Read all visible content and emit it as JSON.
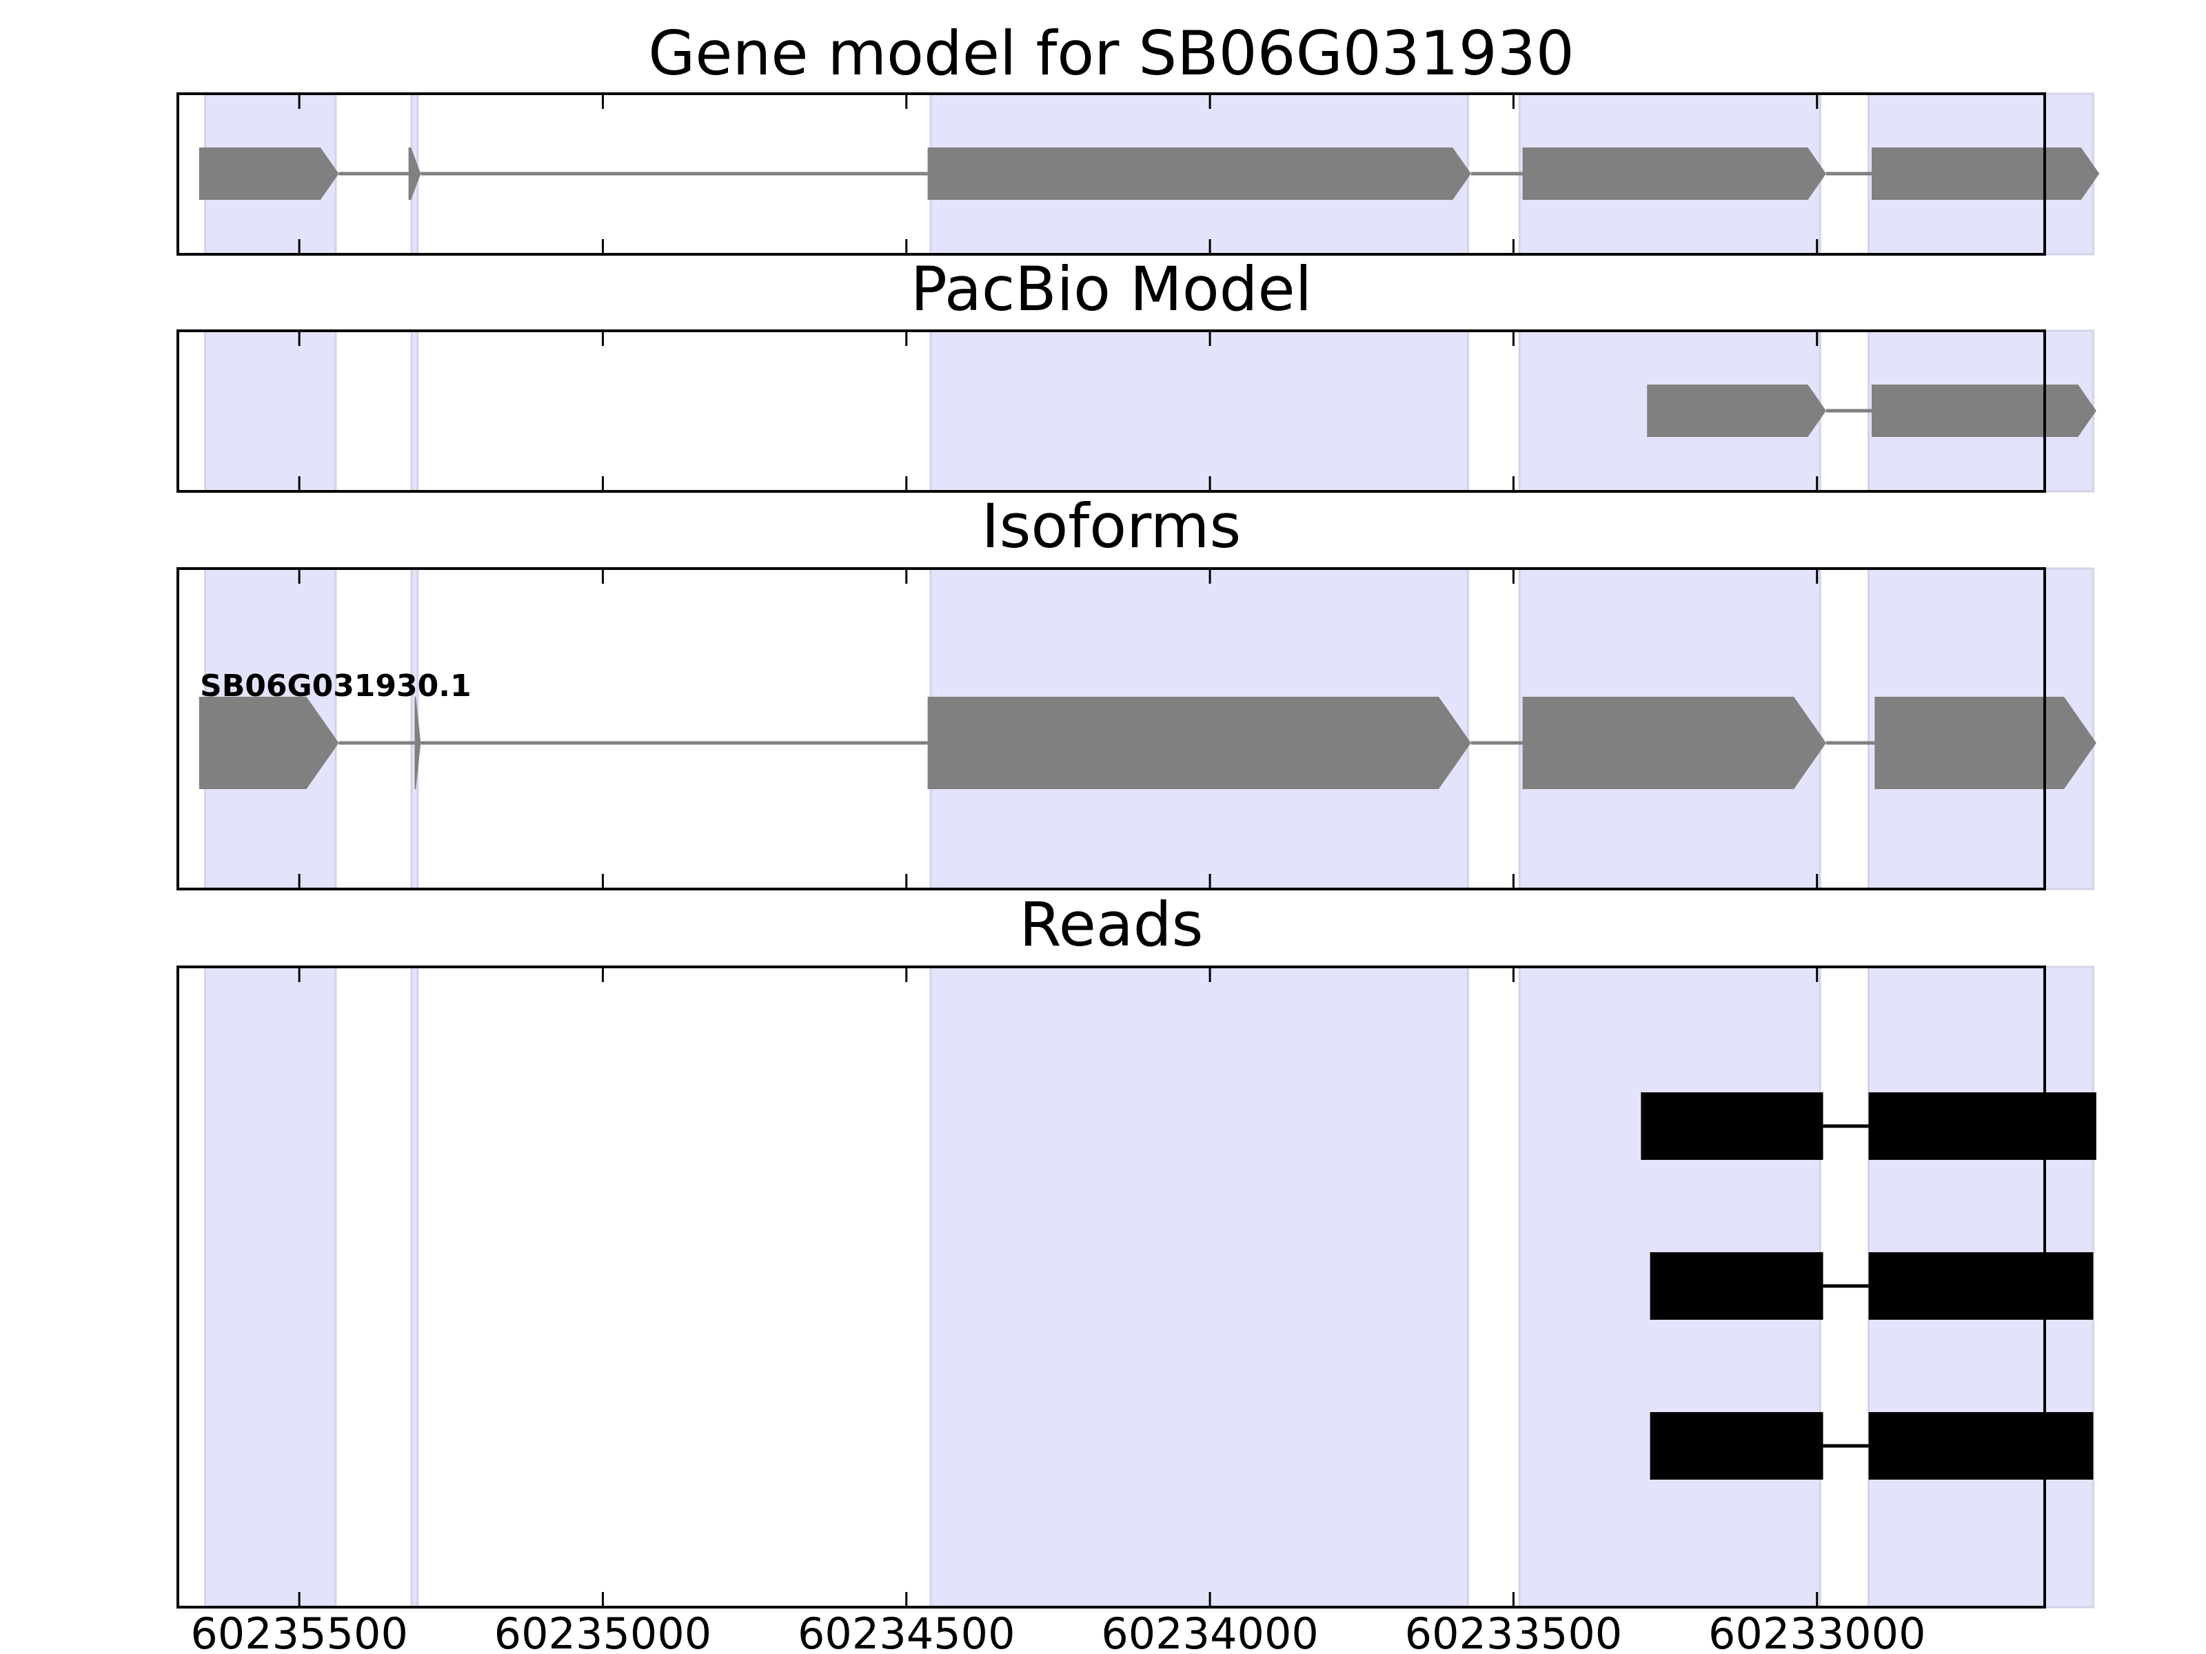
{
  "chart_data": {
    "type": "gene-track",
    "x_axis": {
      "range": [
        60235700,
        60232625
      ],
      "reversed": true,
      "ticks": [
        60235500,
        60235000,
        60234500,
        60234000,
        60233500,
        60233000
      ],
      "tick_labels": [
        "60235500",
        "60235000",
        "60234500",
        "60234000",
        "60233500",
        "60233000"
      ]
    },
    "exon_highlights": [
      [
        60235655,
        60235440
      ],
      [
        60235315,
        60235305
      ],
      [
        60234460,
        60233575
      ],
      [
        60233490,
        60232995
      ],
      [
        60232915,
        60232545
      ]
    ],
    "panels": [
      {
        "key": "gene",
        "title": "Gene model for SB06G031930",
        "tracks": [
          {
            "label": "",
            "color": "#808080",
            "style": "arrow",
            "exons": [
              [
                60235665,
                60235435
              ],
              [
                60235320,
                60235300
              ],
              [
                60234465,
                60233570
              ],
              [
                60233485,
                60232985
              ],
              [
                60232910,
                60232535
              ]
            ]
          }
        ]
      },
      {
        "key": "pacbio",
        "title": "PacBio Model",
        "tracks": [
          {
            "label": "",
            "color": "#808080",
            "style": "arrow",
            "exons": [
              [
                60233280,
                60232985
              ],
              [
                60232910,
                60232540
              ]
            ]
          }
        ]
      },
      {
        "key": "isoforms",
        "title": "Isoforms",
        "tracks": [
          {
            "label": "SB06G031930.1",
            "color": "#808080",
            "style": "arrow",
            "exons": [
              [
                60235665,
                60235435
              ],
              [
                60235310,
                60235300
              ],
              [
                60234465,
                60233570
              ],
              [
                60233485,
                60232985
              ],
              [
                60232905,
                60232540
              ]
            ]
          }
        ]
      },
      {
        "key": "reads",
        "title": "Reads",
        "tracks": [
          {
            "label": "",
            "color": "#000000",
            "style": "block",
            "exons": [
              [
                60233290,
                60232990
              ],
              [
                60232915,
                60232540
              ]
            ]
          },
          {
            "label": "",
            "color": "#000000",
            "style": "block",
            "exons": [
              [
                60233275,
                60232990
              ],
              [
                60232915,
                60232545
              ]
            ]
          },
          {
            "label": "",
            "color": "#000000",
            "style": "block",
            "exons": [
              [
                60233275,
                60232990
              ],
              [
                60232915,
                60232545
              ]
            ]
          }
        ]
      }
    ]
  }
}
